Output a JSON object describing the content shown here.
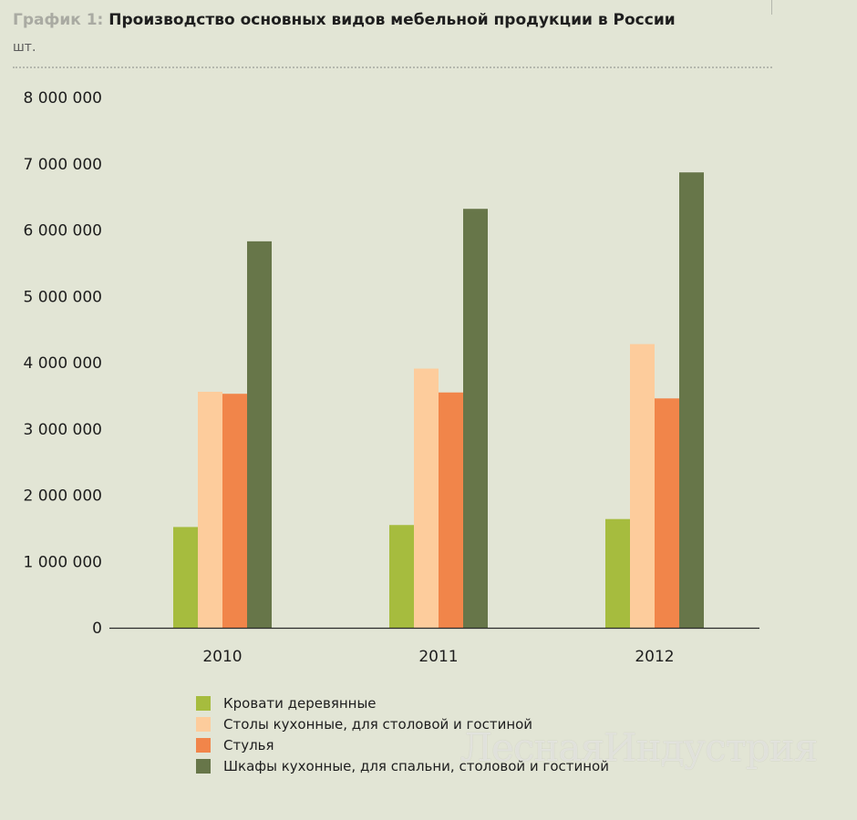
{
  "header": {
    "title_prefix": "График 1:",
    "title": "Производство основных видов мебельной продукции в России",
    "units": "шт."
  },
  "watermark": "ЛеснаяИндустрия",
  "colors": {
    "background": "#e2e5d5",
    "series": [
      "#a6bc3e",
      "#fdcc9c",
      "#f1854a",
      "#677649"
    ]
  },
  "chart_data": {
    "type": "bar",
    "title": "Производство основных видов мебельной продукции в России",
    "ylabel": "шт.",
    "categories": [
      "2010",
      "2011",
      "2012"
    ],
    "ylim": [
      0,
      8000000
    ],
    "yticks": [
      0,
      1000000,
      2000000,
      3000000,
      4000000,
      5000000,
      6000000,
      7000000,
      8000000
    ],
    "ytick_labels": [
      "0",
      "1 000 000",
      "2 000 000",
      "3 000 000",
      "4 000 000",
      "5 000 000",
      "6 000 000",
      "7 000 000",
      "8 000 000"
    ],
    "grid": false,
    "legend_position": "bottom",
    "series": [
      {
        "name": "Кровати деревянные",
        "values": [
          1520000,
          1550000,
          1640000
        ]
      },
      {
        "name": "Столы кухонные, для столовой и гостиной",
        "values": [
          3560000,
          3910000,
          4280000
        ]
      },
      {
        "name": "Стулья",
        "values": [
          3530000,
          3550000,
          3460000
        ]
      },
      {
        "name": "Шкафы кухонные, для спальни, столовой и гостиной",
        "values": [
          5830000,
          6320000,
          6870000
        ]
      }
    ]
  }
}
